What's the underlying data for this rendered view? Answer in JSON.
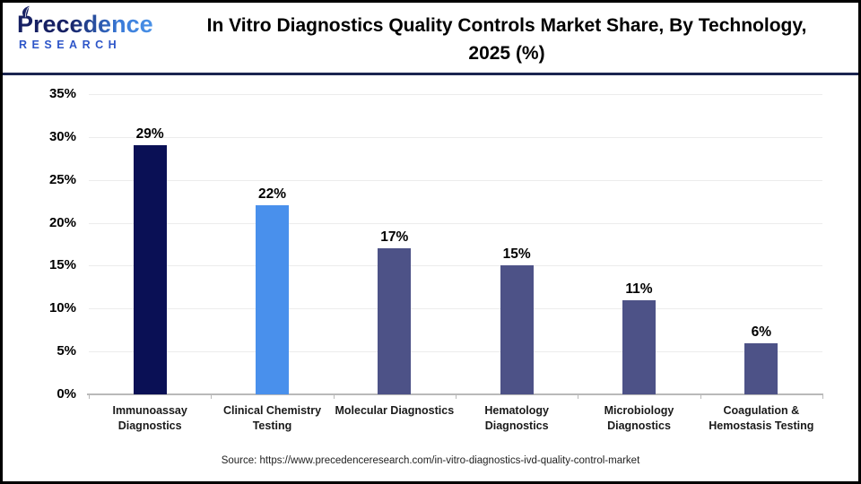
{
  "header": {
    "logo": {
      "name": "Precedence",
      "subtitle": "RESEARCH"
    },
    "title": "In Vitro Diagnostics Quality Controls Market Share, By Technology, 2025 (%)"
  },
  "chart_data": {
    "type": "bar",
    "title": "In Vitro Diagnostics Quality Controls Market Share, By Technology, 2025 (%)",
    "categories": [
      "Immunoassay Diagnostics",
      "Clinical Chemistry Testing",
      "Molecular Diagnostics",
      "Hematology Diagnostics",
      "Microbiology Diagnostics",
      "Coagulation & Hemostasis Testing"
    ],
    "values": [
      29,
      22,
      17,
      15,
      11,
      6
    ],
    "value_labels": [
      "29%",
      "22%",
      "17%",
      "15%",
      "11%",
      "6%"
    ],
    "bar_colors": [
      "#0A1055",
      "#4990EC",
      "#4D5287",
      "#4D5287",
      "#4D5287",
      "#4D5287"
    ],
    "xlabel": "",
    "ylabel": "",
    "ylim": [
      0,
      35
    ],
    "ytick_step": 5,
    "ytick_suffix": "%",
    "grid": "horizontal",
    "legend": "none"
  },
  "footer": {
    "source": "Source: https://www.precedenceresearch.com/in-vitro-diagnostics-ivd-quality-control-market"
  },
  "colors": {
    "header_divider": "#1b2550",
    "gridline": "#ececec",
    "axis_line": "#b9b9b9",
    "logo_navy": "#162063",
    "logo_blue": "#4e97ea",
    "logo_subtitle_blue": "#2d55c8"
  }
}
